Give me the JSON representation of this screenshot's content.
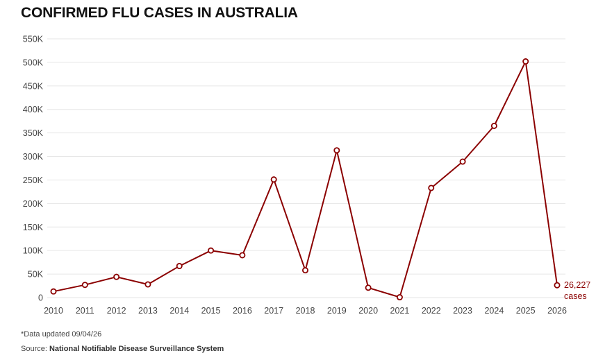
{
  "title": "CONFIRMED FLU CASES IN AUSTRALIA",
  "footnote": "*Data updated 09/04/26",
  "source": {
    "prefix": "Source: ",
    "name": "National Notifiable Disease Surveillance System"
  },
  "colors": {
    "line": "#8b0000",
    "grid": "#e6e6e6",
    "marker_fill": "#ffffff"
  },
  "chart_data": {
    "type": "line",
    "title": "CONFIRMED FLU CASES IN AUSTRALIA",
    "xlabel": "",
    "ylabel": "",
    "ylim": [
      0,
      550000
    ],
    "y_ticks": [
      0,
      50000,
      100000,
      150000,
      200000,
      250000,
      300000,
      350000,
      400000,
      450000,
      500000,
      550000
    ],
    "y_tick_labels": [
      "0",
      "50K",
      "100K",
      "150K",
      "200K",
      "250K",
      "300K",
      "350K",
      "400K",
      "450K",
      "500K",
      "550K"
    ],
    "x": [
      "2010",
      "2011",
      "2012",
      "2013",
      "2014",
      "2015",
      "2016",
      "2017",
      "2018",
      "2019",
      "2020",
      "2021",
      "2022",
      "2023",
      "2024",
      "2025",
      "2026"
    ],
    "series": [
      {
        "name": "Confirmed flu cases",
        "values": [
          13000,
          27000,
          44000,
          28000,
          67000,
          100000,
          90000,
          251000,
          58000,
          313000,
          21000,
          700,
          233000,
          289000,
          365000,
          502000,
          26227
        ]
      }
    ],
    "annotation": {
      "value_label": "26,227",
      "unit_label": "cases"
    },
    "grid": true,
    "legend": "none"
  }
}
